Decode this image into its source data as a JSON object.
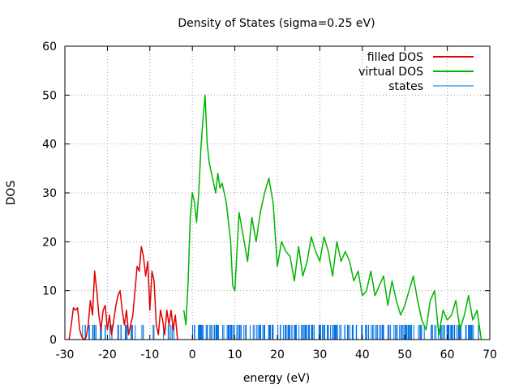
{
  "chart_data": {
    "type": "line",
    "title": "Density of States (sigma=0.25 eV)",
    "xlabel": "energy (eV)",
    "ylabel": "DOS",
    "xlim": [
      -30,
      70
    ],
    "ylim": [
      0,
      60
    ],
    "xticks": [
      -30,
      -20,
      -10,
      0,
      10,
      20,
      30,
      40,
      50,
      60,
      70
    ],
    "yticks": [
      0,
      10,
      20,
      30,
      40,
      50,
      60
    ],
    "xtick_labels": [
      "-30",
      "-20",
      "-10",
      "0",
      "10",
      "20",
      "30",
      "40",
      "50",
      "60",
      "70"
    ],
    "ytick_labels": [
      "0",
      "10",
      "20",
      "30",
      "40",
      "50",
      "60"
    ],
    "grid": true,
    "legend_position": "top-right",
    "series": [
      {
        "name": "filled DOS",
        "color": "#e00000",
        "x": [
          -29,
          -28.5,
          -28,
          -27.5,
          -27,
          -26.5,
          -26,
          -25.5,
          -25,
          -24.5,
          -24,
          -23.5,
          -23,
          -22.5,
          -22,
          -21.5,
          -21,
          -20.5,
          -20,
          -19.5,
          -19,
          -18.5,
          -18,
          -17.5,
          -17,
          -16.5,
          -16,
          -15.5,
          -15,
          -14.5,
          -14,
          -13.5,
          -13,
          -12.5,
          -12,
          -11.5,
          -11,
          -10.5,
          -10,
          -9.5,
          -9,
          -8.5,
          -8,
          -7.5,
          -7,
          -6.5,
          -6,
          -5.5,
          -5,
          -4.5,
          -4,
          -3.5
        ],
        "y": [
          0,
          3,
          6.5,
          6,
          6.5,
          2,
          0.5,
          0,
          0.5,
          3,
          8,
          5,
          14,
          10,
          5,
          2,
          6,
          7,
          2,
          5,
          1,
          4,
          7,
          9,
          10,
          6,
          3,
          6,
          1,
          3,
          5,
          10,
          15,
          14,
          19,
          17,
          13,
          16,
          6,
          14,
          12,
          3,
          1,
          6,
          4,
          1,
          6,
          3,
          6,
          2,
          5,
          0
        ]
      },
      {
        "name": "virtual DOS",
        "color": "#00b400",
        "x": [
          -2,
          -1.5,
          -1,
          -0.5,
          0,
          0.5,
          1,
          1.5,
          2,
          2.5,
          3,
          3.5,
          4,
          4.5,
          5,
          5.5,
          6,
          6.5,
          7,
          7.5,
          8,
          9,
          9.5,
          10,
          10.5,
          11,
          12,
          13,
          14,
          15,
          16,
          17,
          18,
          19,
          20,
          21,
          22,
          23,
          24,
          25,
          26,
          27,
          28,
          29,
          30,
          31,
          32,
          33,
          34,
          35,
          36,
          37,
          38,
          39,
          40,
          41,
          42,
          43,
          44,
          45,
          46,
          47,
          48,
          49,
          50,
          51,
          52,
          53,
          54,
          55,
          56,
          57,
          58,
          59,
          60,
          61,
          62,
          63,
          64,
          65,
          66,
          67,
          67.5,
          68
        ],
        "y": [
          6,
          3,
          12,
          25,
          30,
          28,
          24,
          30,
          39,
          45,
          50,
          40,
          36,
          34,
          32,
          30,
          34,
          31,
          32,
          30,
          28,
          20,
          11,
          10,
          18,
          26,
          21,
          16,
          25,
          20,
          26,
          30,
          33,
          28,
          15,
          20,
          18,
          17,
          12,
          19,
          13,
          16,
          21,
          18,
          16,
          21,
          18,
          13,
          20,
          16,
          18,
          16,
          12,
          14,
          9,
          10,
          14,
          9,
          11,
          13,
          7,
          12,
          8,
          5,
          7,
          10,
          13,
          8,
          4,
          2,
          8,
          10,
          1,
          6,
          4,
          5,
          8,
          2,
          5,
          9,
          4,
          6,
          3,
          0
        ]
      },
      {
        "name": "states",
        "color": "#0070e0",
        "value": 3
      }
    ]
  }
}
